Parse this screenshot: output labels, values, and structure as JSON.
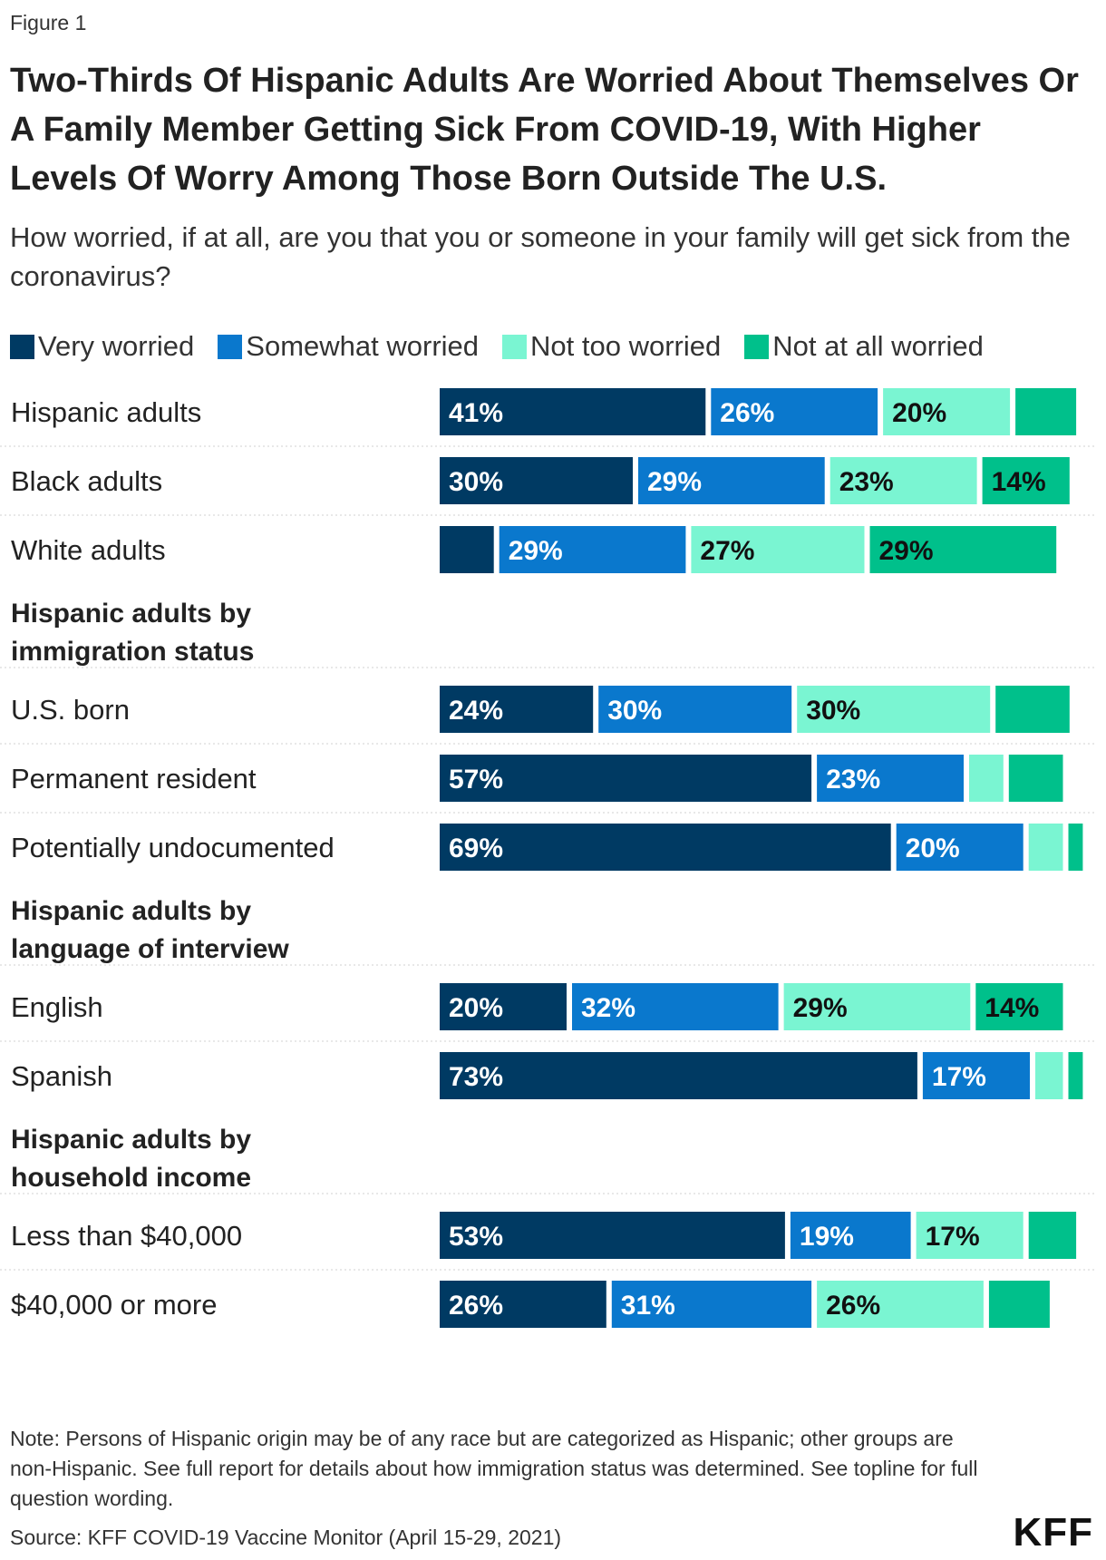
{
  "figure_label": "Figure 1",
  "note": "Note: Persons of Hispanic origin may be of any race but are categorized as Hispanic; other groups are non-Hispanic. See full report for details about how immigration status was determined. See topline for full question wording.",
  "source": "Source: KFF COVID-19 Vaccine Monitor (April 15-29, 2021)",
  "logo_text": "KFF",
  "chart_data": {
    "type": "bar",
    "orientation": "horizontal",
    "stacked": true,
    "title": "Two-Thirds Of Hispanic Adults Are Worried About Themselves Or A Family Member Getting Sick From COVID-19, With Higher Levels Of Worry Among Those Born Outside The U.S.",
    "subtitle": "How worried, if at all, are you that you or someone in your family will get sick from the coronavirus?",
    "xlim": [
      0,
      100
    ],
    "unit": "%",
    "series": [
      {
        "name": "Very worried",
        "color": "#003a63"
      },
      {
        "name": "Somewhat worried",
        "color": "#0a78cd"
      },
      {
        "name": "Not too worried",
        "color": "#7af5d2"
      },
      {
        "name": "Not at all worried",
        "color": "#00c08b"
      }
    ],
    "rows": [
      {
        "kind": "bar",
        "label": "Hispanic adults",
        "values": [
          41,
          26,
          20,
          10
        ],
        "labels": [
          "41%",
          "26%",
          "20%",
          ""
        ]
      },
      {
        "kind": "bar",
        "label": "Black adults",
        "values": [
          30,
          29,
          23,
          14
        ],
        "labels": [
          "30%",
          "29%",
          "23%",
          "14%"
        ]
      },
      {
        "kind": "bar",
        "label": "White adults",
        "values": [
          9,
          29,
          27,
          29
        ],
        "labels": [
          "",
          "29%",
          "27%",
          "29%"
        ]
      },
      {
        "kind": "header",
        "label": "Hispanic adults by immigration status"
      },
      {
        "kind": "bar",
        "label": "U.S. born",
        "values": [
          24,
          30,
          30,
          12
        ],
        "labels": [
          "24%",
          "30%",
          "30%",
          ""
        ]
      },
      {
        "kind": "bar",
        "label": "Permanent resident",
        "values": [
          57,
          23,
          6,
          9
        ],
        "labels": [
          "57%",
          "23%",
          "",
          ""
        ]
      },
      {
        "kind": "bar",
        "label": "Potentially undocumented",
        "values": [
          69,
          20,
          6,
          3
        ],
        "labels": [
          "69%",
          "20%",
          "",
          ""
        ]
      },
      {
        "kind": "header",
        "label": "Hispanic adults by language of interview"
      },
      {
        "kind": "bar",
        "label": "English",
        "values": [
          20,
          32,
          29,
          14
        ],
        "labels": [
          "20%",
          "32%",
          "29%",
          "14%"
        ]
      },
      {
        "kind": "bar",
        "label": "Spanish",
        "values": [
          73,
          17,
          5,
          3
        ],
        "labels": [
          "73%",
          "17%",
          "",
          ""
        ]
      },
      {
        "kind": "header",
        "label": "Hispanic adults by household income"
      },
      {
        "kind": "bar",
        "label": "Less than $40,000",
        "values": [
          53,
          19,
          17,
          8
        ],
        "labels": [
          "53%",
          "19%",
          "17%",
          ""
        ]
      },
      {
        "kind": "bar",
        "label": "$40,000 or more",
        "values": [
          26,
          31,
          26,
          10
        ],
        "labels": [
          "26%",
          "31%",
          "26%",
          ""
        ]
      }
    ]
  }
}
